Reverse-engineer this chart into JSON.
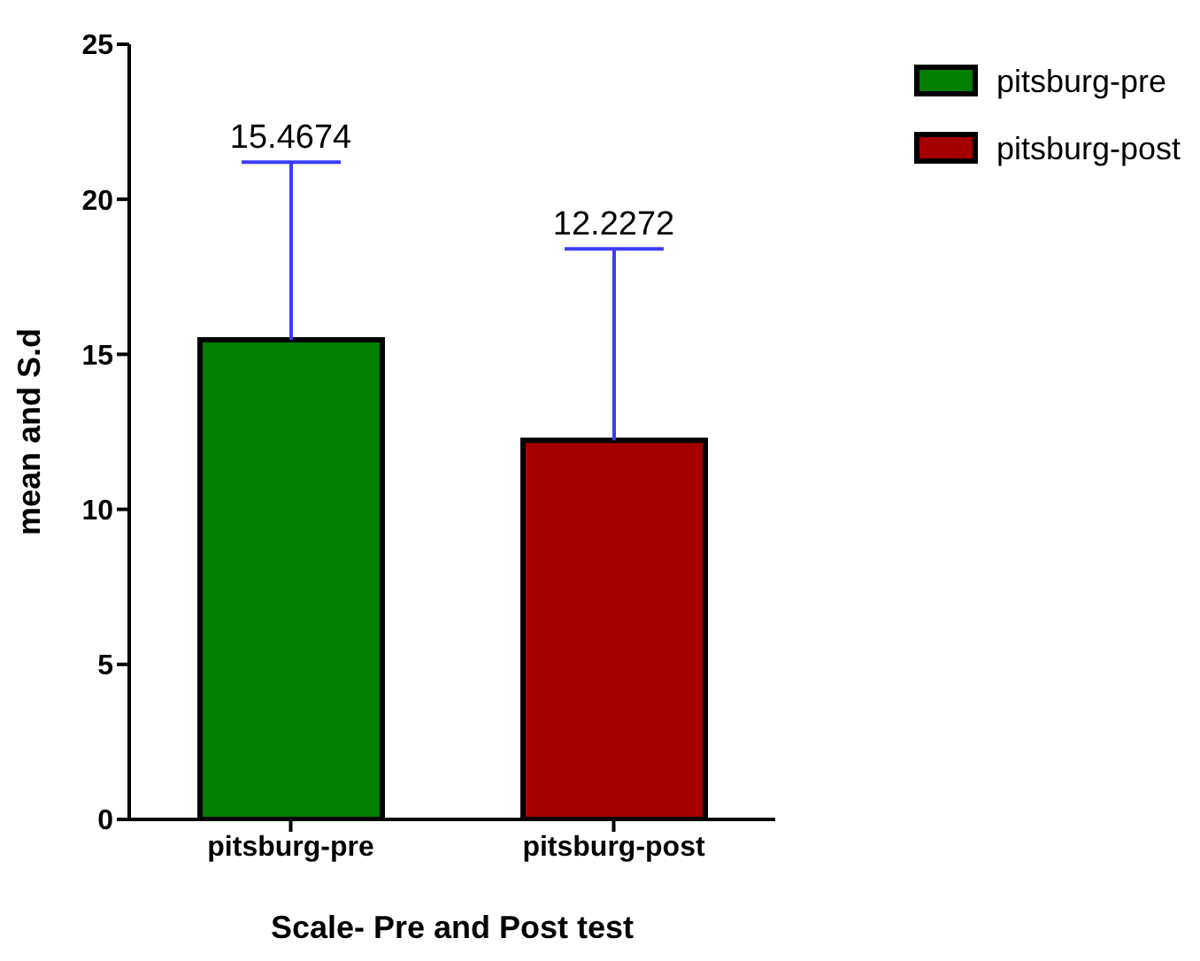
{
  "chart_data": {
    "type": "bar",
    "xlabel": "Scale- Pre and Post test",
    "ylabel": "mean and S.d",
    "categories": [
      "pitsburg-pre",
      "pitsburg-post"
    ],
    "stacked": true,
    "series": [
      {
        "name": "pitsburg-pre",
        "color": "#007f00",
        "values": [
          15.4674,
          null
        ],
        "errors": [
          [
            15.4674,
            21.2
          ],
          null
        ]
      },
      {
        "name": "pitsburg-post",
        "color": "#a50000",
        "values": [
          null,
          12.2272
        ],
        "errors": [
          null,
          [
            12.2272,
            18.4
          ]
        ]
      }
    ],
    "annotations": [
      {
        "text": "15.4674",
        "x": "pitsburg-pre",
        "y": 21.2
      },
      {
        "text": "12.2272",
        "x": "pitsburg-post",
        "y": 18.4
      }
    ],
    "ylim": [
      0,
      25
    ],
    "yticks": [
      0,
      5,
      10,
      15,
      20,
      25
    ],
    "legend": "top right"
  }
}
